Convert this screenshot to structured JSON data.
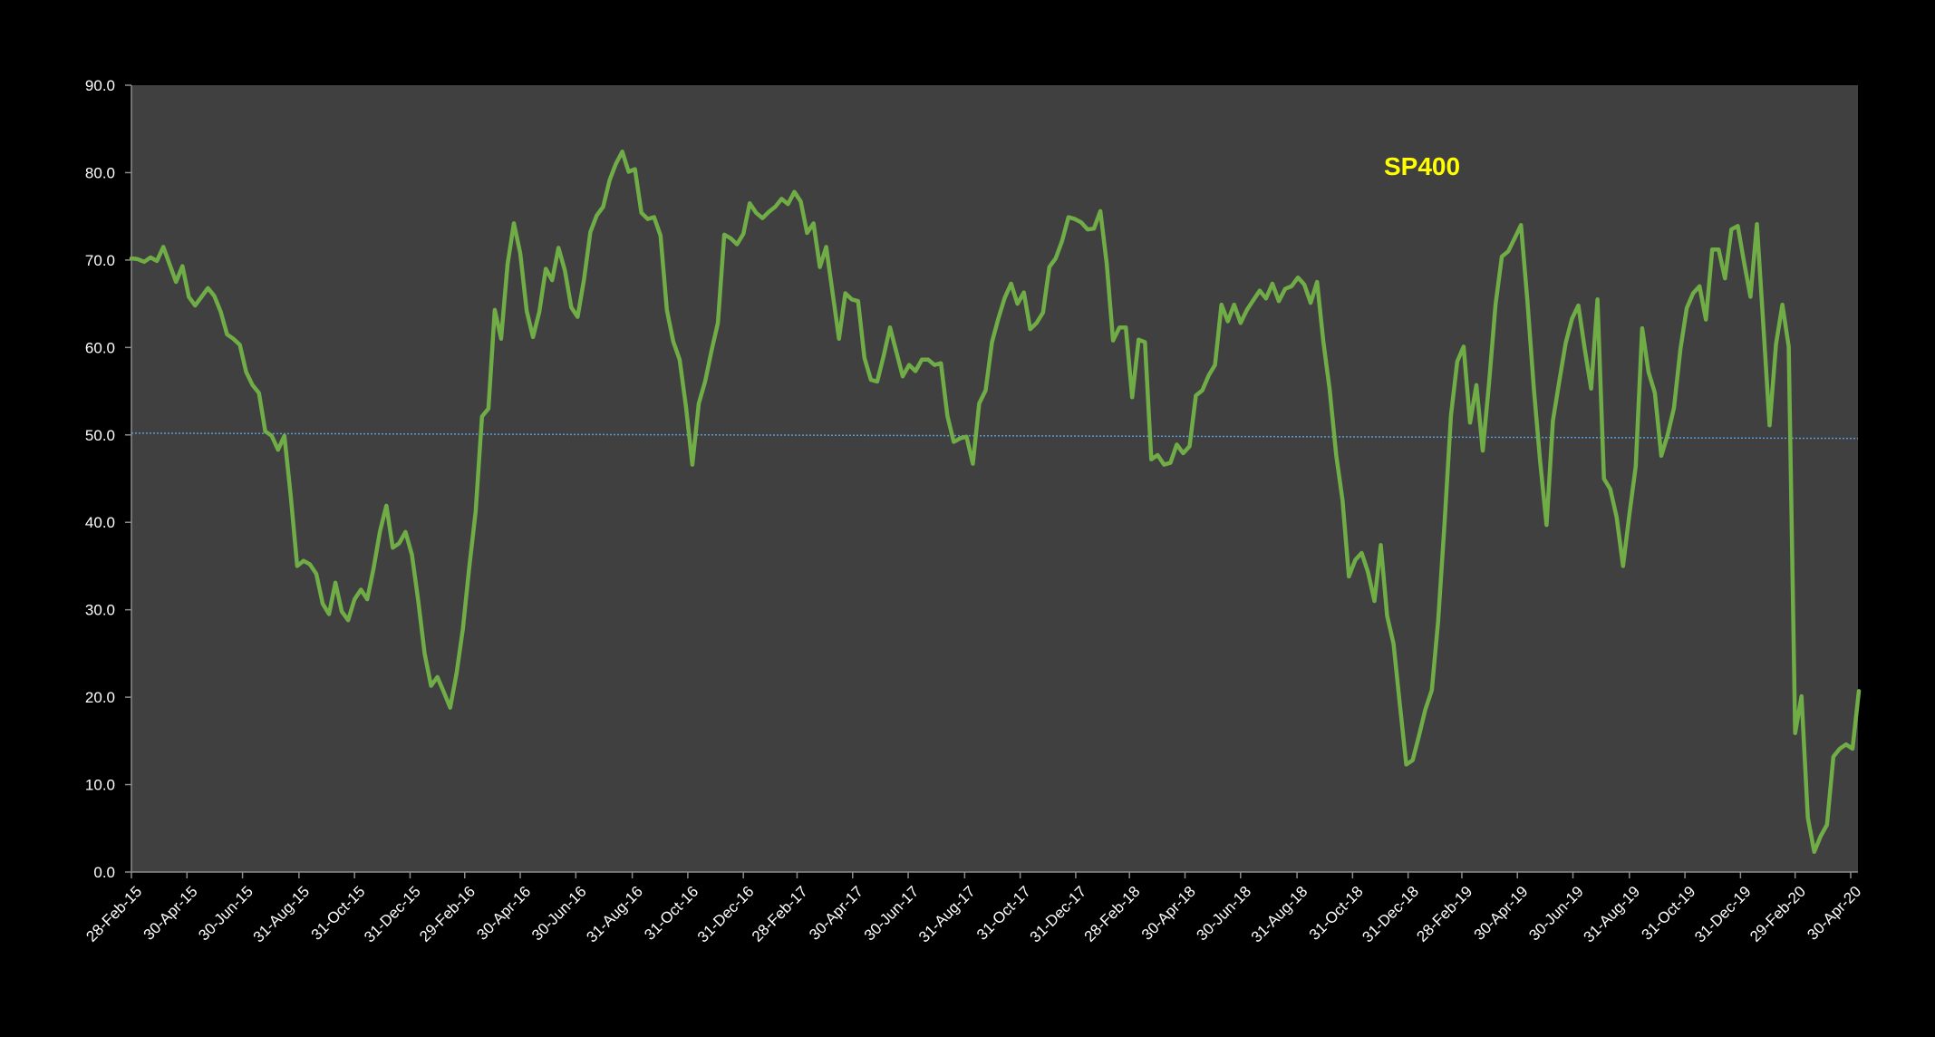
{
  "colors": {
    "background": "#000000",
    "plot_area": "#404040",
    "series_line": "#70ad47",
    "reference_line": "#5b9bd5",
    "title": "#ffff00",
    "text": "#ffffff"
  },
  "chart_data": {
    "type": "line",
    "title": "SP400",
    "xlabel": "",
    "ylabel": "",
    "ylim": [
      0,
      90
    ],
    "y_ticks": [
      "0.0",
      "10.0",
      "20.0",
      "30.0",
      "40.0",
      "50.0",
      "60.0",
      "70.0",
      "80.0",
      "90.0"
    ],
    "x_tick_labels": [
      "28-Feb-15",
      "30-Apr-15",
      "30-Jun-15",
      "31-Aug-15",
      "31-Oct-15",
      "31-Dec-15",
      "29-Feb-16",
      "30-Apr-16",
      "30-Jun-16",
      "31-Aug-16",
      "31-Oct-16",
      "31-Dec-16",
      "28-Feb-17",
      "30-Apr-17",
      "30-Jun-17",
      "31-Aug-17",
      "31-Oct-17",
      "31-Dec-17",
      "28-Feb-18",
      "30-Apr-18",
      "30-Jun-18",
      "31-Aug-18",
      "31-Oct-18",
      "31-Dec-18",
      "28-Feb-19",
      "30-Apr-19",
      "30-Jun-19",
      "31-Aug-19",
      "31-Oct-19",
      "31-Dec-19",
      "29-Feb-20",
      "30-Apr-20"
    ],
    "x_start": "2015-02-28",
    "x_end": "2020-05-08",
    "grid": false,
    "legend": "none",
    "reference_line": {
      "start": 50.2,
      "end": 49.6
    },
    "series": [
      {
        "values": [
          70.2,
          70.1,
          69.8,
          70.3,
          69.9,
          71.5,
          69.5,
          67.5,
          69.3,
          65.8,
          64.8,
          65.8,
          66.8,
          65.9,
          64.1,
          61.5,
          61.0,
          60.3,
          57.2,
          55.7,
          54.8,
          50.4,
          49.9,
          48.3,
          49.9,
          43.0,
          35.0,
          35.6,
          35.2,
          34.1,
          30.7,
          29.5,
          33.1,
          29.8,
          28.8,
          31.2,
          32.3,
          31.2,
          34.8,
          39.0,
          41.9,
          37.1,
          37.6,
          38.9,
          36.3,
          31.0,
          25.0,
          21.3,
          22.3,
          20.6,
          18.8,
          22.7,
          27.8,
          34.9,
          41.2,
          52.1,
          53.0,
          64.3,
          61.0,
          69.5,
          74.2,
          70.8,
          64.2,
          61.2,
          64.1,
          69.0,
          67.7,
          71.4,
          68.8,
          64.6,
          63.5,
          67.8,
          73.2,
          75.1,
          76.1,
          79.1,
          81.0,
          82.4,
          80.1,
          80.4,
          75.4,
          74.7,
          74.9,
          72.8,
          64.3,
          60.7,
          58.6,
          53.2,
          46.6,
          53.6,
          56.1,
          59.6,
          62.8,
          72.9,
          72.5,
          71.8,
          73.0,
          76.5,
          75.4,
          74.8,
          75.5,
          76.1,
          77.0,
          76.4,
          77.8,
          76.7,
          73.1,
          74.2,
          69.2,
          71.5,
          66.2,
          61.0,
          66.2,
          65.5,
          65.3,
          58.8,
          56.3,
          56.1,
          59.0,
          62.3,
          59.5,
          56.7,
          58.0,
          57.3,
          58.6,
          58.6,
          58.0,
          58.2,
          52.2,
          49.2,
          49.6,
          49.8,
          46.7,
          53.6,
          55.1,
          60.6,
          63.3,
          65.7,
          67.3,
          65.0,
          66.3,
          62.1,
          62.8,
          64.0,
          69.2,
          70.2,
          72.2,
          74.9,
          74.7,
          74.3,
          73.5,
          73.6,
          75.6,
          69.6,
          60.8,
          62.3,
          62.3,
          54.3,
          60.9,
          60.6,
          47.2,
          47.7,
          46.6,
          46.8,
          48.9,
          47.9,
          48.7,
          54.5,
          55.1,
          56.8,
          58.0,
          64.9,
          63.0,
          64.9,
          62.8,
          64.3,
          65.4,
          66.5,
          65.6,
          67.3,
          65.3,
          66.7,
          67.0,
          68.0,
          67.2,
          65.1,
          67.5,
          60.6,
          55.1,
          47.7,
          42.5,
          33.8,
          35.7,
          36.5,
          34.3,
          31.0,
          37.4,
          29.3,
          26.1,
          19.1,
          12.3,
          12.8,
          15.6,
          18.6,
          20.8,
          28.7,
          39.8,
          52.2,
          58.4,
          60.1,
          51.4,
          55.7,
          48.2,
          56.1,
          64.9,
          70.4,
          71.0,
          72.5,
          74.0,
          65.3,
          55.4,
          47.0,
          39.7,
          51.6,
          56.1,
          60.5,
          63.3,
          64.8,
          59.8,
          55.3,
          65.5,
          45.0,
          43.8,
          40.6,
          35.0,
          40.9,
          46.4,
          62.2,
          57.2,
          54.8,
          47.6,
          50.0,
          53.1,
          59.8,
          64.5,
          66.2,
          67.0,
          63.2,
          71.2,
          71.2,
          67.9,
          73.5,
          73.9,
          69.7,
          65.8,
          74.1,
          62.7,
          51.1,
          60.4,
          64.9,
          60.1,
          15.9,
          20.1,
          6.2,
          2.3,
          4.1,
          5.4,
          13.2,
          14.1,
          14.6,
          14.1,
          20.7
        ]
      }
    ]
  }
}
